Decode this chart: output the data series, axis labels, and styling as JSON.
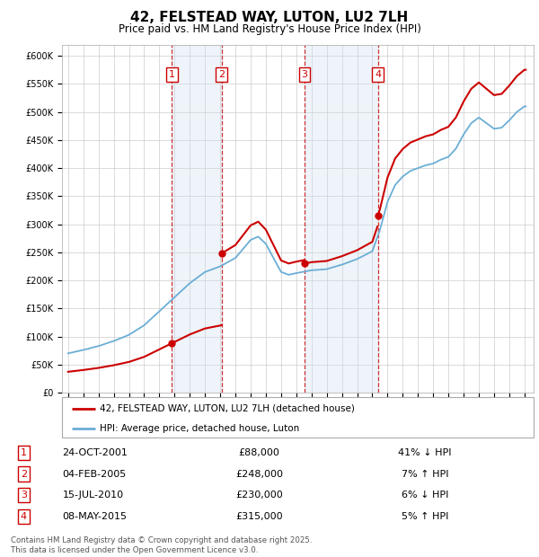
{
  "title": "42, FELSTEAD WAY, LUTON, LU2 7LH",
  "subtitle": "Price paid vs. HM Land Registry's House Price Index (HPI)",
  "legend_house": "42, FELSTEAD WAY, LUTON, LU2 7LH (detached house)",
  "legend_hpi": "HPI: Average price, detached house, Luton",
  "footer": "Contains HM Land Registry data © Crown copyright and database right 2025.\nThis data is licensed under the Open Government Licence v3.0.",
  "transactions": [
    {
      "num": 1,
      "date": "24-OCT-2001",
      "price": 88000,
      "pct": "41%",
      "dir": "↓",
      "year": 2001.82
    },
    {
      "num": 2,
      "date": "04-FEB-2005",
      "price": 248000,
      "pct": "7%",
      "dir": "↑",
      "year": 2005.09
    },
    {
      "num": 3,
      "date": "15-JUL-2010",
      "price": 230000,
      "pct": "6%",
      "dir": "↓",
      "year": 2010.54
    },
    {
      "num": 4,
      "date": "08-MAY-2015",
      "price": 315000,
      "pct": "5%",
      "dir": "↑",
      "year": 2015.36
    }
  ],
  "hpi_color": "#6baed6",
  "price_color": "#cc0000",
  "vline_color": "#cc0000",
  "ylim": [
    0,
    620000
  ],
  "yticks": [
    0,
    50000,
    100000,
    150000,
    200000,
    250000,
    300000,
    350000,
    400000,
    450000,
    500000,
    550000,
    600000
  ],
  "shade_color": "#cfe0f0"
}
